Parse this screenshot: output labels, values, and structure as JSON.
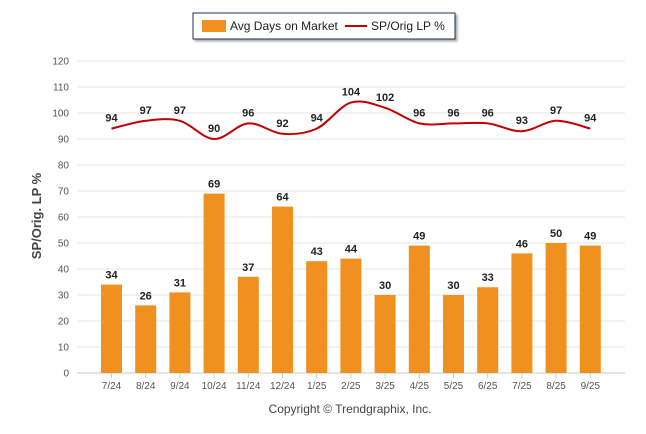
{
  "chart_data": {
    "type": "bar",
    "title": "",
    "xlabel": "",
    "ylabel": "SP/Orig. LP %",
    "ylim": [
      0,
      120
    ],
    "yticks": [
      0,
      10,
      20,
      30,
      40,
      50,
      60,
      70,
      80,
      90,
      100,
      110,
      120
    ],
    "grid": true,
    "legend_position": "top-center",
    "categories": [
      "7/24",
      "8/24",
      "9/24",
      "10/24",
      "11/24",
      "12/24",
      "1/25",
      "2/25",
      "3/25",
      "4/25",
      "5/25",
      "6/25",
      "7/25",
      "8/25",
      "9/25"
    ],
    "series": [
      {
        "name": "Avg Days on Market",
        "kind": "bar",
        "color": "#f0901e",
        "values": [
          34,
          26,
          31,
          69,
          37,
          64,
          43,
          44,
          30,
          49,
          30,
          33,
          46,
          50,
          49
        ]
      },
      {
        "name": "SP/Orig LP %",
        "kind": "line",
        "color": "#c00000",
        "values": [
          94,
          97,
          97,
          90,
          96,
          92,
          94,
          104,
          102,
          96,
          96,
          96,
          93,
          97,
          94
        ]
      }
    ],
    "footer": "Copyright © Trendgraphix, Inc."
  }
}
